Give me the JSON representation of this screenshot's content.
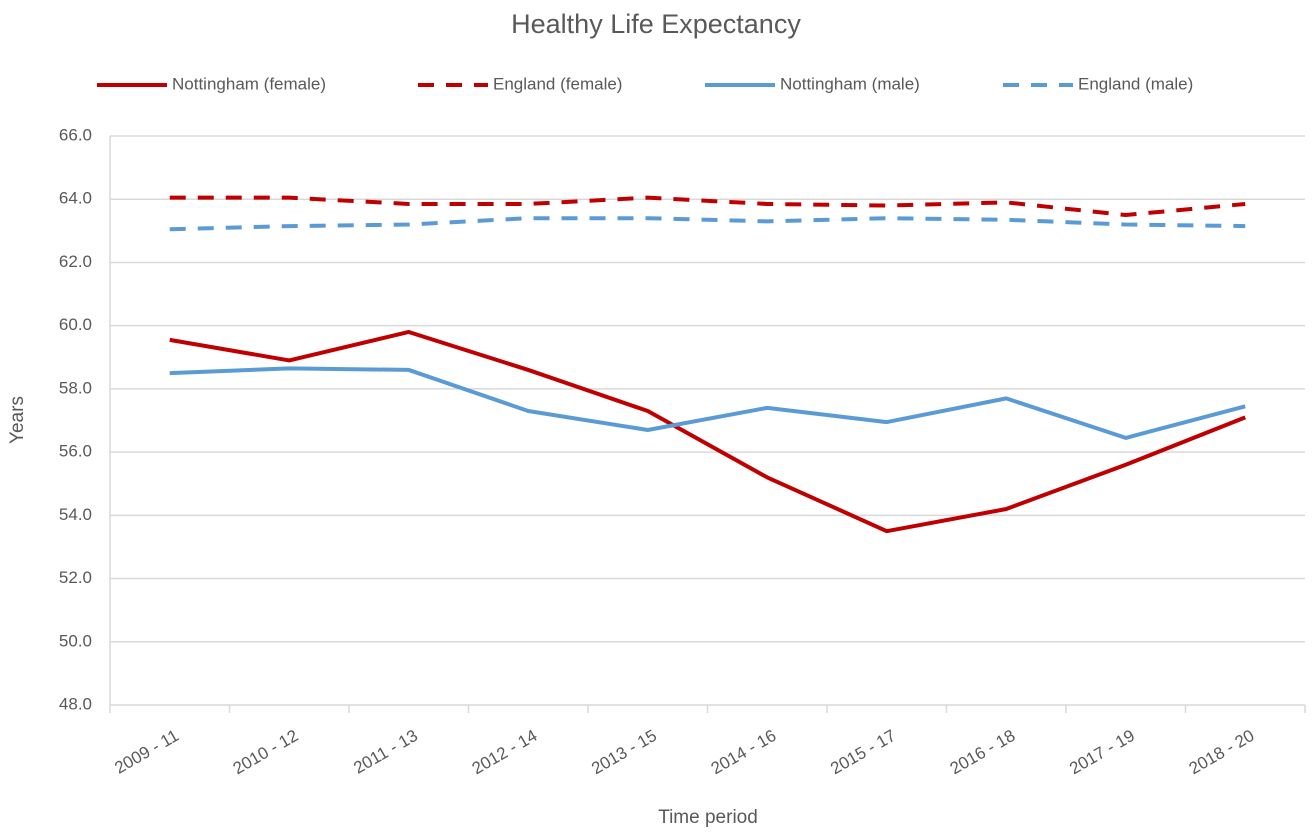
{
  "chart_data": {
    "type": "line",
    "title": "Healthy Life Expectancy",
    "x_label": "Time period",
    "y_label": "Years",
    "categories": [
      "2009 - 11",
      "2010 - 12",
      "2011 - 13",
      "2012 - 14",
      "2013 - 15",
      "2014 - 16",
      "2015 - 17",
      "2016 - 18",
      "2017 - 19",
      "2018 - 20"
    ],
    "series": [
      {
        "name": "Nottingham (female)",
        "color": "#c00000",
        "dashed": false,
        "values": [
          59.55,
          58.9,
          59.8,
          58.6,
          57.3,
          55.2,
          53.5,
          54.2,
          55.6,
          57.1
        ]
      },
      {
        "name": "England (female)",
        "color": "#c00000",
        "dashed": true,
        "values": [
          64.05,
          64.05,
          63.85,
          63.85,
          64.05,
          63.85,
          63.8,
          63.9,
          63.5,
          63.85
        ]
      },
      {
        "name": "Nottingham (male)",
        "color": "#5b9bd5",
        "dashed": false,
        "values": [
          58.5,
          58.65,
          58.6,
          57.3,
          56.7,
          57.4,
          56.95,
          57.7,
          56.45,
          57.45
        ]
      },
      {
        "name": "England (male)",
        "color": "#5b9bd5",
        "dashed": true,
        "values": [
          63.05,
          63.15,
          63.2,
          63.4,
          63.4,
          63.3,
          63.4,
          63.35,
          63.2,
          63.15
        ]
      }
    ],
    "ylim": [
      48,
      66
    ],
    "yticks": [
      {
        "value": 48,
        "label": "48.0"
      },
      {
        "value": 50,
        "label": "50.0"
      },
      {
        "value": 52,
        "label": "52.0"
      },
      {
        "value": 54,
        "label": "54.0"
      },
      {
        "value": 56,
        "label": "56.0"
      },
      {
        "value": 58,
        "label": "58.0"
      },
      {
        "value": 60,
        "label": "60.0"
      },
      {
        "value": 62,
        "label": "62.0"
      },
      {
        "value": 64,
        "label": "64.0"
      },
      {
        "value": 66,
        "label": "66.0"
      }
    ],
    "grid": true,
    "legend": "top"
  }
}
